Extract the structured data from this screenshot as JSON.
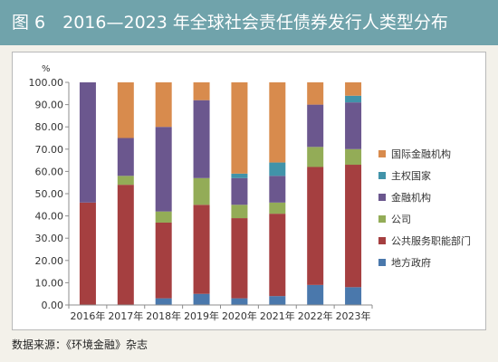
{
  "title": "图 6　2016—2023 年全球社会责任债券发行人类型分布",
  "source": "数据来源：《环境金融》杂志",
  "chart_data": {
    "type": "bar",
    "stacked": true,
    "title": "图 6　2016—2023 年全球社会责任债券发行人类型分布",
    "xlabel": "",
    "ylabel": "%",
    "ylim": [
      0,
      100
    ],
    "yticks": [
      "0.00",
      "10.00",
      "20.00",
      "30.00",
      "40.00",
      "50.00",
      "60.00",
      "70.00",
      "80.00",
      "90.00",
      "100.00"
    ],
    "categories": [
      "2016年",
      "2017年",
      "2018年",
      "2019年",
      "2020年",
      "2021年",
      "2022年",
      "2023年"
    ],
    "legend_position": "right",
    "series": [
      {
        "name": "地方政府",
        "color": "#4a78ac",
        "values": [
          0,
          0,
          3,
          5,
          3,
          4,
          9,
          8
        ]
      },
      {
        "name": "公共服务职能部门",
        "color": "#a53f40",
        "values": [
          46,
          54,
          34,
          40,
          36,
          37,
          53,
          55
        ]
      },
      {
        "name": "公司",
        "color": "#93ac57",
        "values": [
          0,
          4,
          5,
          12,
          6,
          5,
          9,
          7
        ]
      },
      {
        "name": "金融机构",
        "color": "#6b578e",
        "values": [
          54,
          17,
          38,
          35,
          12,
          12,
          19,
          21
        ]
      },
      {
        "name": "主权国家",
        "color": "#4193a9",
        "values": [
          0,
          0,
          0,
          0,
          2,
          6,
          0,
          3
        ]
      },
      {
        "name": "国际金融机构",
        "color": "#d88b4d",
        "values": [
          0,
          25,
          20,
          8,
          41,
          36,
          10,
          6
        ]
      }
    ]
  }
}
